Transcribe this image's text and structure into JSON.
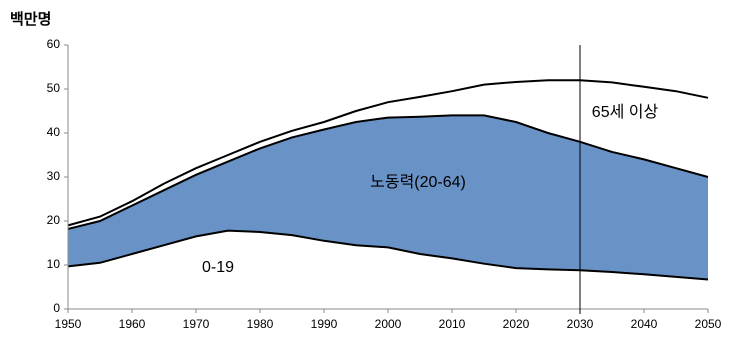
{
  "chart_data": {
    "type": "stacked-area",
    "ylabel": "백만명",
    "x": [
      1950,
      1955,
      1960,
      1965,
      1970,
      1975,
      1980,
      1985,
      1990,
      1995,
      2000,
      2005,
      2010,
      2015,
      2020,
      2025,
      2030,
      2035,
      2040,
      2045,
      2050
    ],
    "series": [
      {
        "name": "0-19",
        "values": [
          9.7,
          10.5,
          12.5,
          14.5,
          16.5,
          17.8,
          17.5,
          16.8,
          15.5,
          14.5,
          14,
          12.5,
          11.5,
          10.3,
          9.3,
          9,
          8.8,
          8.4,
          7.9,
          7.3,
          6.7
        ]
      },
      {
        "name": "노동력(20-64)",
        "color": "#6993c7",
        "values": [
          8.5,
          9.5,
          11,
          12.5,
          14,
          15.7,
          19,
          22.2,
          25.3,
          28,
          29.5,
          31.2,
          32.5,
          33.7,
          33.2,
          31,
          29.2,
          27.3,
          26.1,
          24.7,
          23.3
        ]
      },
      {
        "name": "65세 이상",
        "values": [
          0.8,
          1,
          1,
          1.5,
          1.5,
          1.5,
          1.5,
          1.5,
          1.7,
          2.5,
          3.5,
          4.5,
          5.5,
          7,
          9.1,
          12,
          14,
          15.8,
          16.5,
          17.5,
          18
        ]
      }
    ],
    "vline": 2030,
    "xlim": [
      1950,
      2050
    ],
    "xticks": [
      1950,
      1960,
      1970,
      1980,
      1990,
      2000,
      2010,
      2020,
      2030,
      2040,
      2050
    ],
    "ylim": [
      0,
      60
    ],
    "yticks": [
      0,
      10,
      20,
      30,
      40,
      50,
      60
    ]
  }
}
